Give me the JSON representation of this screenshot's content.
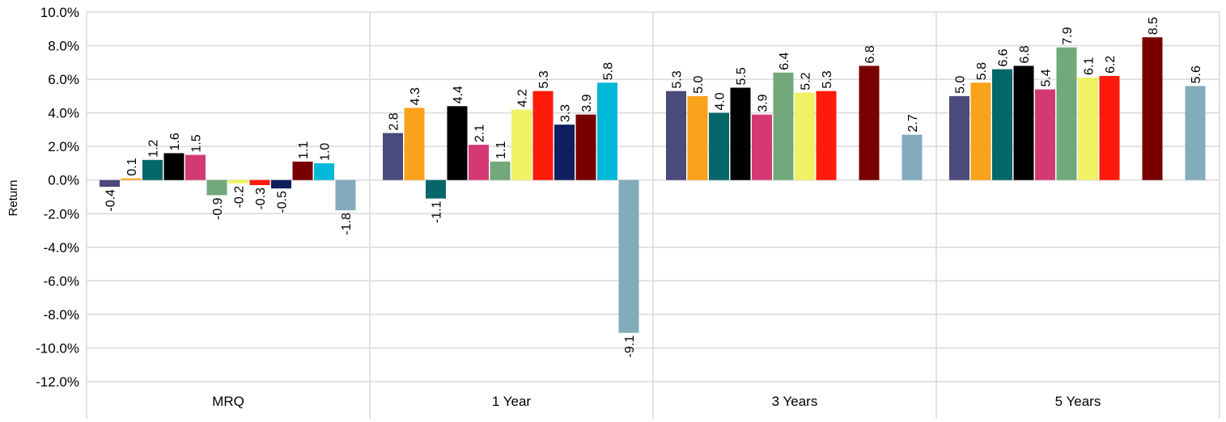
{
  "chart_data": {
    "type": "bar",
    "ylabel": "Return",
    "ylim": [
      -12,
      10
    ],
    "ytick_step": 2,
    "ytick_format": "percent_1dp",
    "grid": true,
    "categories": [
      "MRQ",
      "1 Year",
      "3 Years",
      "5 Years"
    ],
    "series": [
      {
        "color": "#4b4a7c",
        "values": [
          -0.4,
          2.8,
          5.3,
          5.0
        ]
      },
      {
        "color": "#f9a21b",
        "values": [
          0.1,
          4.3,
          5.0,
          5.8
        ]
      },
      {
        "color": "#05676a",
        "values": [
          1.2,
          -1.1,
          4.0,
          6.6
        ]
      },
      {
        "color": "#000000",
        "values": [
          1.6,
          4.4,
          5.5,
          6.8
        ]
      },
      {
        "color": "#d33a74",
        "values": [
          1.5,
          2.1,
          3.9,
          5.4
        ]
      },
      {
        "color": "#72a87a",
        "values": [
          -0.9,
          1.1,
          6.4,
          7.9
        ]
      },
      {
        "color": "#eef264",
        "values": [
          -0.2,
          4.2,
          5.2,
          6.1
        ]
      },
      {
        "color": "#ff1a0a",
        "values": [
          -0.3,
          5.3,
          5.3,
          6.2
        ]
      },
      {
        "color": "#0e1f5e",
        "values": [
          -0.5,
          3.3,
          null,
          null
        ]
      },
      {
        "color": "#780000",
        "values": [
          1.1,
          3.9,
          6.8,
          8.5
        ]
      },
      {
        "color": "#00b8d8",
        "values": [
          1.0,
          5.8,
          null,
          null
        ]
      },
      {
        "color": "#84abbb",
        "values": [
          -1.8,
          -9.1,
          2.7,
          5.6
        ]
      }
    ]
  }
}
